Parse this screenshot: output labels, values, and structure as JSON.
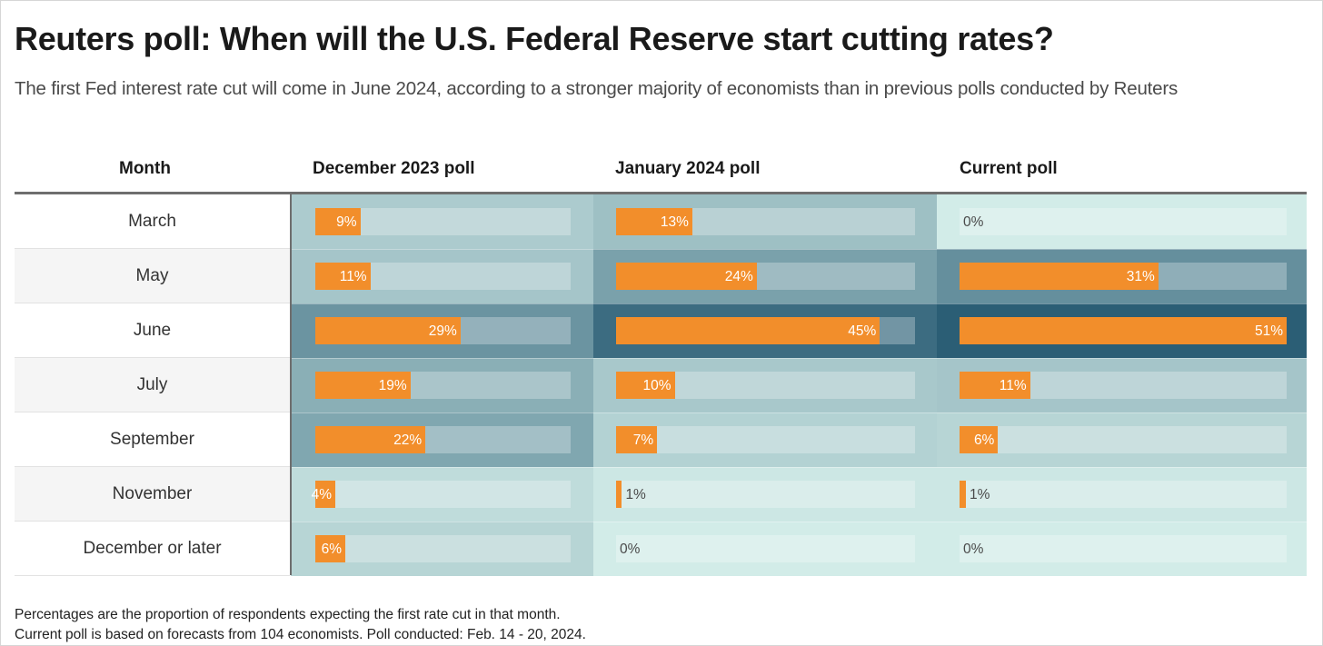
{
  "title": "Reuters poll: When will the U.S. Federal Reserve start cutting rates?",
  "subtitle": "The first Fed interest rate cut will come in June 2024, according to a stronger majority of economists than in previous polls conducted by Reuters",
  "column_headers": {
    "month": "Month",
    "dec": "December 2023 poll",
    "jan": "January 2024 poll",
    "current": "Current poll"
  },
  "chart_data": {
    "type": "table",
    "title": "Reuters poll: When will the U.S. Federal Reserve start cutting rates?",
    "unit": "%",
    "categories": [
      "March",
      "May",
      "June",
      "July",
      "September",
      "November",
      "December or later"
    ],
    "series": [
      {
        "name": "December 2023 poll",
        "values": [
          9,
          11,
          29,
          19,
          22,
          4,
          6
        ]
      },
      {
        "name": "January 2024 poll",
        "values": [
          13,
          24,
          45,
          10,
          7,
          1,
          0
        ]
      },
      {
        "name": "Current poll",
        "values": [
          0,
          31,
          51,
          11,
          6,
          1,
          0
        ]
      }
    ],
    "bar_scale_max_percent": 51,
    "colors": {
      "bar": "#f28e2b",
      "heat_low": "#d2ece8",
      "heat_high": "#2b5e75"
    }
  },
  "footnotes": [
    "Percentages are the proportion of respondents expecting the first rate cut in that month.",
    "Current poll is based on forecasts from 104 economists. Poll conducted: Feb. 14 - 20, 2024."
  ]
}
